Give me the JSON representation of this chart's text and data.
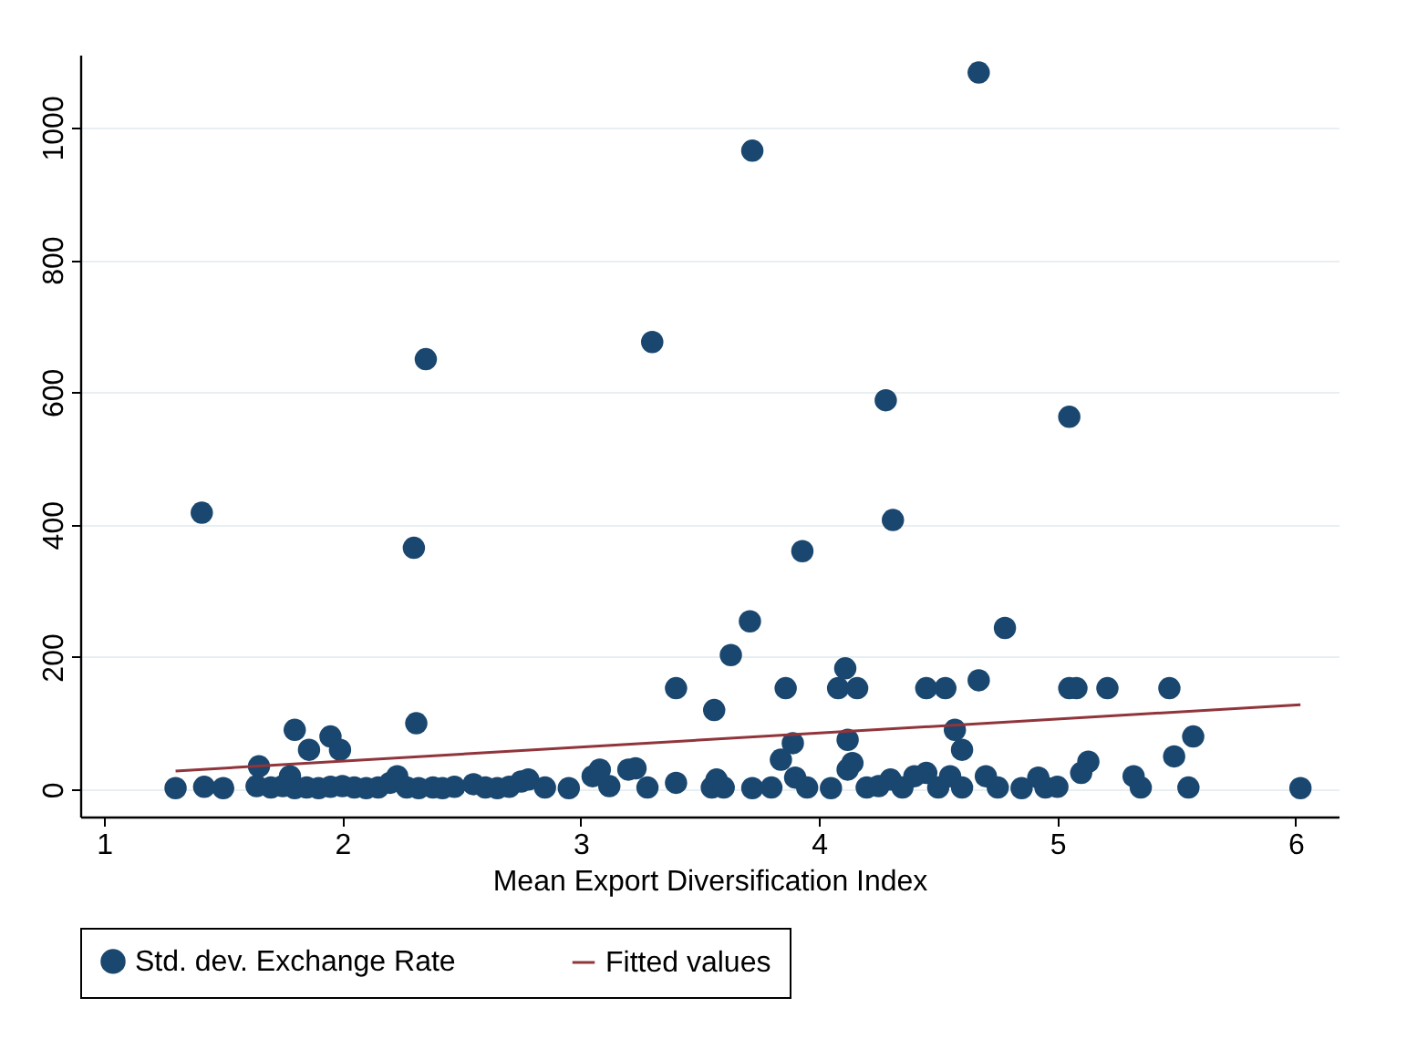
{
  "chart_data": {
    "type": "scatter",
    "xlabel": "Mean Export Diversification Index",
    "xlim": [
      0.9,
      6.18
    ],
    "xticks": [
      1,
      2,
      3,
      4,
      5,
      6
    ],
    "ylim": [
      -41,
      1110
    ],
    "yticks": [
      0,
      200,
      400,
      600,
      800,
      1000
    ],
    "grid": "y",
    "legend": "bottom",
    "series": [
      {
        "name": "Std. dev. Exchange Rate",
        "marker": "circle",
        "color": "#1a476f",
        "x": [
          1.41,
          2.35,
          2.3,
          3.3,
          3.72,
          4.67,
          4.28,
          4.31,
          5.05,
          3.93,
          3.71,
          4.78,
          3.63,
          3.56,
          3.4,
          3.86,
          4.08,
          4.11,
          4.16,
          4.45,
          4.53,
          4.67,
          5.05,
          5.08,
          5.21,
          5.47,
          2.31,
          1.8,
          1.95,
          1.86,
          1.99,
          3.84,
          3.89,
          4.12,
          4.6,
          4.57,
          5.57,
          5.49,
          4.14,
          5.13,
          1.3,
          1.42,
          1.5,
          1.64,
          1.65,
          1.7,
          1.75,
          1.78,
          1.8,
          1.85,
          1.9,
          1.95,
          2.0,
          2.05,
          2.1,
          2.15,
          2.2,
          2.23,
          2.27,
          2.32,
          2.38,
          2.42,
          2.47,
          2.55,
          2.6,
          2.65,
          2.7,
          2.75,
          2.78,
          2.85,
          2.95,
          3.05,
          3.08,
          3.12,
          3.2,
          3.23,
          3.28,
          3.4,
          3.55,
          3.57,
          3.6,
          3.72,
          3.8,
          3.9,
          3.95,
          4.05,
          4.12,
          4.2,
          4.25,
          4.3,
          4.35,
          4.4,
          4.45,
          4.5,
          4.55,
          4.6,
          4.7,
          4.75,
          4.85,
          4.92,
          4.95,
          5.0,
          5.1,
          5.32,
          5.35,
          5.55,
          6.02
        ],
        "values": [
          418,
          650,
          365,
          676,
          965,
          1083,
          588,
          407,
          563,
          360,
          254,
          244,
          203,
          120,
          153,
          153,
          153,
          183,
          153,
          153,
          153,
          165,
          153,
          153,
          153,
          153,
          100,
          90,
          80,
          60,
          60,
          45,
          70,
          75,
          60,
          90,
          80,
          50,
          40,
          42,
          2,
          4,
          2,
          5,
          35,
          3,
          5,
          20,
          2,
          3,
          2,
          4,
          5,
          3,
          2,
          3,
          10,
          20,
          3,
          2,
          3,
          2,
          4,
          8,
          3,
          2,
          4,
          12,
          15,
          3,
          2,
          20,
          30,
          5,
          30,
          32,
          3,
          10,
          3,
          15,
          3,
          2,
          3,
          18,
          3,
          2,
          30,
          3,
          5,
          15,
          3,
          20,
          25,
          3,
          20,
          3,
          20,
          3,
          2,
          18,
          3,
          4,
          25,
          20,
          3,
          3,
          2
        ]
      },
      {
        "name": "Fitted values",
        "type": "line",
        "color": "#90353b",
        "x": [
          1.3,
          6.02
        ],
        "values": [
          28,
          128
        ]
      }
    ]
  }
}
